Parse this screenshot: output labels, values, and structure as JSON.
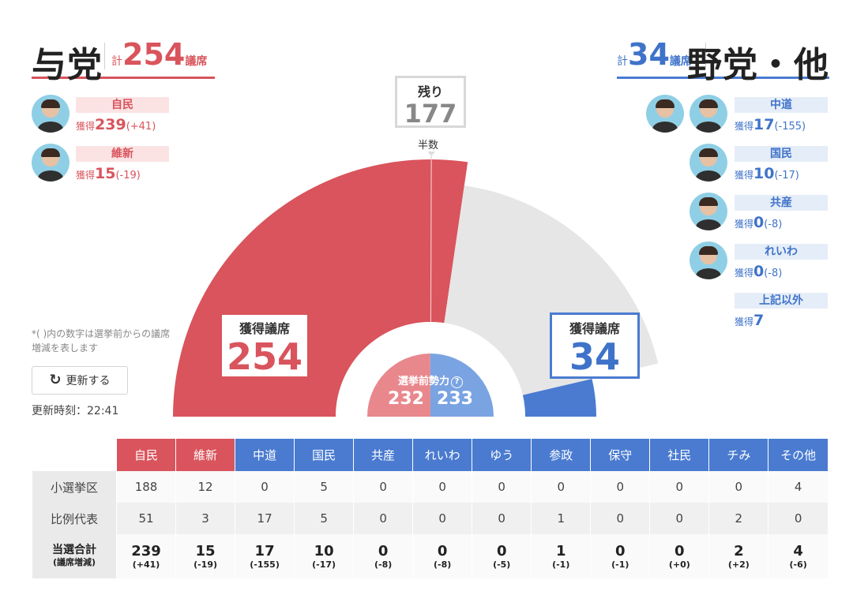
{
  "ruling": {
    "title": "与党",
    "total_prefix": "計",
    "total": "254",
    "total_unit": "議席",
    "parties": [
      {
        "name": "自民",
        "label": "獲得",
        "seats": "239",
        "change": "(+41)"
      },
      {
        "name": "維新",
        "label": "獲得",
        "seats": "15",
        "change": "(-19)"
      }
    ]
  },
  "opposition": {
    "title": "野党・他",
    "total_prefix": "計",
    "total": "34",
    "total_unit": "議席",
    "parties": [
      {
        "name": "中道",
        "label": "獲得",
        "seats": "17",
        "change": "(-155)"
      },
      {
        "name": "国民",
        "label": "獲得",
        "seats": "10",
        "change": "(-17)"
      },
      {
        "name": "共産",
        "label": "獲得",
        "seats": "0",
        "change": "(-8)"
      },
      {
        "name": "れいわ",
        "label": "獲得",
        "seats": "0",
        "change": "(-8)"
      },
      {
        "name": "上記以外",
        "label": "獲得",
        "seats": "7",
        "change": ""
      }
    ]
  },
  "note": "*( )内の数字は選挙前からの議席増減を表します",
  "refresh": {
    "label": "更新する",
    "icon": "refresh-icon"
  },
  "updated": "更新時刻：22:41",
  "center": {
    "remaining_label": "残り",
    "remaining": "177",
    "half_label": "半数",
    "ruling_label": "獲得議席",
    "ruling_seats": "254",
    "opp_label": "獲得議席",
    "opp_seats": "34",
    "pre_label": "選挙前勢力",
    "pre_help": "?",
    "pre_ruling": "232",
    "pre_opp": "233"
  },
  "colors": {
    "ruling": "#d9545c",
    "opposition": "#4a7bd0",
    "remaining": "#e6e6e6",
    "pre_ruling": "#e8888d",
    "pre_opp": "#7aa3e2"
  },
  "chart_data": {
    "type": "semicircle",
    "total_seats": 465,
    "majority": 233,
    "segments": [
      {
        "name": "与党",
        "value": 254
      },
      {
        "name": "残り",
        "value": 177
      },
      {
        "name": "野党・他",
        "value": 34
      }
    ],
    "pre_election": [
      {
        "name": "与党",
        "value": 232
      },
      {
        "name": "野党・他",
        "value": 233
      }
    ]
  },
  "table": {
    "headers": [
      {
        "name": "自民",
        "side": "ruling"
      },
      {
        "name": "維新",
        "side": "ruling"
      },
      {
        "name": "中道",
        "side": "opp"
      },
      {
        "name": "国民",
        "side": "opp"
      },
      {
        "name": "共産",
        "side": "opp"
      },
      {
        "name": "れいわ",
        "side": "opp"
      },
      {
        "name": "ゆう",
        "side": "opp"
      },
      {
        "name": "参政",
        "side": "opp"
      },
      {
        "name": "保守",
        "side": "opp"
      },
      {
        "name": "社民",
        "side": "opp"
      },
      {
        "name": "チみ",
        "side": "opp"
      },
      {
        "name": "その他",
        "side": "opp"
      }
    ],
    "rows": [
      {
        "label": "小選挙区",
        "values": [
          "188",
          "12",
          "0",
          "5",
          "0",
          "0",
          "0",
          "0",
          "0",
          "0",
          "0",
          "4"
        ]
      },
      {
        "label": "比例代表",
        "values": [
          "51",
          "3",
          "17",
          "5",
          "0",
          "0",
          "0",
          "1",
          "0",
          "0",
          "2",
          "0"
        ]
      }
    ],
    "total_label": "当選合計",
    "total_sublabel": "(議席増減)",
    "totals": [
      "239",
      "15",
      "17",
      "10",
      "0",
      "0",
      "0",
      "1",
      "0",
      "0",
      "2",
      "4"
    ],
    "total_changes": [
      "(+41)",
      "(-19)",
      "(-155)",
      "(-17)",
      "(-8)",
      "(-8)",
      "(-5)",
      "(-1)",
      "(-1)",
      "(+0)",
      "(+2)",
      "(-6)"
    ]
  }
}
